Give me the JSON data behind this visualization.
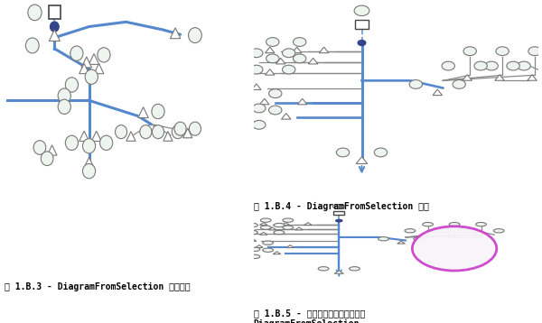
{
  "bg_color": "#ffffff",
  "blue": "#5588cc",
  "blue2": "#4477bb",
  "gray": "#888888",
  "gray2": "#aaaaaa",
  "purple": "#cc44cc",
  "dashed": "#6699cc",
  "node_fc": "#eef5ee",
  "node_ec": "#777777",
  "sq_ec": "#555555",
  "caption1": "图 1.B.3 - DiagramFromSelection 逻辑示意",
  "caption2": "图 1.B.4 - DiagramFromSelection 布局",
  "caption3": "图 1.B.5 - 已移除逻辑示意图要求的\nDiagramFromSelection",
  "caption_fs": 7.0
}
